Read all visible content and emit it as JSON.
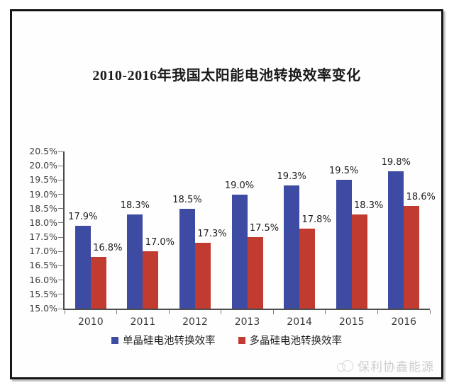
{
  "page": {
    "title": "2010-2016年我国太阳能电池转换效率变化",
    "watermark_text": "保利协鑫能源",
    "watermark_icon": "gcl-circles-logo-icon"
  },
  "colors": {
    "mono_blue": "#3D4BA3",
    "poly_red": "#C13B30",
    "axis": "#4d4d4d",
    "frame_border": "#161616"
  },
  "legend": [
    {
      "label": "单晶硅电池转换效率",
      "color": "#3D4BA3"
    },
    {
      "label": "多晶硅电池转换效率",
      "color": "#C13B30"
    }
  ],
  "chart_data": {
    "type": "bar",
    "title": "2010-2016年我国太阳能电池转换效率变化",
    "xlabel": "",
    "ylabel": "",
    "categories": [
      "2010",
      "2011",
      "2012",
      "2013",
      "2014",
      "2015",
      "2016"
    ],
    "series": [
      {
        "name": "单晶硅电池转换效率",
        "color": "#3D4BA3",
        "values": [
          17.9,
          18.3,
          18.5,
          19.0,
          19.3,
          19.5,
          19.8
        ],
        "labels": [
          "17.9%",
          "18.3%",
          "18.5%",
          "19.0%",
          "19.3%",
          "19.5%",
          "19.8%"
        ]
      },
      {
        "name": "多晶硅电池转换效率",
        "color": "#C13B30",
        "values": [
          16.8,
          17.0,
          17.3,
          17.5,
          17.8,
          18.3,
          18.6
        ],
        "labels": [
          "16.8%",
          "17.0%",
          "17.3%",
          "17.5%",
          "17.8%",
          "18.3%",
          "18.6%"
        ]
      }
    ],
    "ylim": [
      15.0,
      20.5
    ],
    "ytick_step": 0.5,
    "ytick_labels": [
      "15.0%",
      "15.5%",
      "16.0%",
      "16.5%",
      "17.0%",
      "17.5%",
      "18.0%",
      "18.5%",
      "19.0%",
      "19.5%",
      "20.0%",
      "20.5%"
    ],
    "grid": false,
    "legend_position": "bottom"
  }
}
